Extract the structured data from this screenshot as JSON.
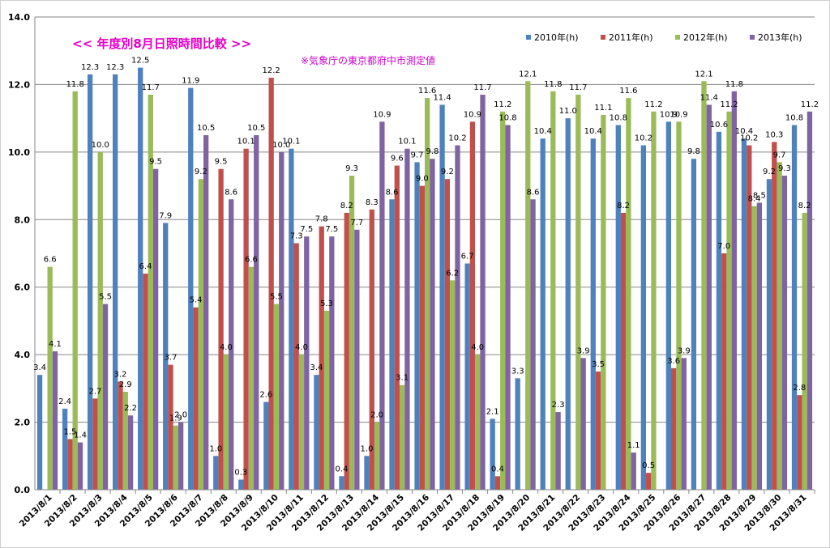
{
  "chart_data": {
    "type": "bar",
    "title": "<<  年度別8月日照時間比較  >>",
    "subtitle": "※気象庁の東京都府中市測定値",
    "xlabel": "",
    "ylabel": "",
    "ylim": [
      0,
      14
    ],
    "yticks": [
      "0.0",
      "2.0",
      "4.0",
      "6.0",
      "8.0",
      "10.0",
      "12.0",
      "14.0"
    ],
    "grid": true,
    "legend_position": "top-right",
    "colors": {
      "title": "#e600c8",
      "subtitle": "#cc00cc",
      "grid": "#868686",
      "axis": "#868686"
    },
    "categories": [
      "2013/8/1",
      "2013/8/2",
      "2013/8/3",
      "2013/8/4",
      "2013/8/5",
      "2013/8/6",
      "2013/8/7",
      "2013/8/8",
      "2013/8/9",
      "2013/8/10",
      "2013/8/11",
      "2013/8/12",
      "2013/8/13",
      "2013/8/14",
      "2013/8/15",
      "2013/8/16",
      "2013/8/17",
      "2013/8/18",
      "2013/8/19",
      "2013/8/20",
      "2013/8/21",
      "2013/8/22",
      "2013/8/23",
      "2013/8/24",
      "2013/8/25",
      "2013/8/26",
      "2013/8/27",
      "2013/8/28",
      "2013/8/29",
      "2013/8/30",
      "2013/8/31"
    ],
    "series": [
      {
        "name": "2010年(h)",
        "color": "#4f81bd",
        "values": [
          3.4,
          2.4,
          12.3,
          12.3,
          12.5,
          7.9,
          11.9,
          1.0,
          0.3,
          2.6,
          10.1,
          3.4,
          0.4,
          1.0,
          8.6,
          9.7,
          11.4,
          6.7,
          2.1,
          3.3,
          10.4,
          11.0,
          10.4,
          10.8,
          10.2,
          10.9,
          9.8,
          10.6,
          10.4,
          9.2,
          10.8
        ]
      },
      {
        "name": "2011年(h)",
        "color": "#c0504d",
        "values": [
          0,
          1.5,
          2.7,
          3.2,
          6.4,
          3.7,
          5.4,
          9.5,
          10.1,
          12.2,
          7.3,
          7.8,
          8.2,
          8.3,
          9.6,
          9.0,
          9.2,
          10.9,
          0.4,
          0,
          0,
          0,
          3.5,
          8.2,
          0.5,
          3.6,
          0,
          7.0,
          10.2,
          10.3,
          2.8
        ]
      },
      {
        "name": "2012年(h)",
        "color": "#9bbb59",
        "values": [
          6.6,
          11.8,
          10.0,
          2.9,
          11.7,
          1.9,
          9.2,
          4.0,
          6.6,
          5.5,
          4.0,
          5.3,
          9.3,
          2.0,
          3.1,
          11.6,
          6.2,
          4.0,
          11.2,
          12.1,
          11.8,
          11.7,
          11.1,
          11.6,
          11.2,
          10.9,
          12.1,
          11.2,
          8.4,
          9.7,
          8.2
        ]
      },
      {
        "name": "2013年(h)",
        "color": "#8064a2",
        "values": [
          4.1,
          1.4,
          5.5,
          2.2,
          9.5,
          2.0,
          10.5,
          8.6,
          10.5,
          10.0,
          7.5,
          7.5,
          7.7,
          10.9,
          10.1,
          9.8,
          10.2,
          11.7,
          10.8,
          8.6,
          2.3,
          3.9,
          0,
          1.1,
          0,
          3.9,
          11.4,
          11.8,
          8.5,
          9.3,
          11.2
        ]
      }
    ]
  }
}
